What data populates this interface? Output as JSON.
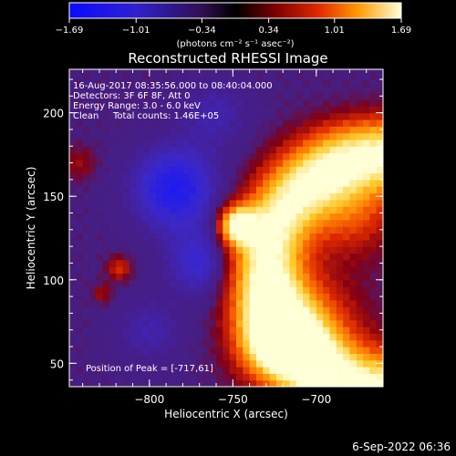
{
  "chart_data": {
    "type": "heatmap",
    "title": "Reconstructed RHESSI Image",
    "xlabel": "Heliocentric X (arcsec)",
    "ylabel": "Heliocentric Y (arcsec)",
    "xlim": [
      -848,
      -660
    ],
    "ylim": [
      36,
      226
    ],
    "x_ticks": [
      {
        "value": -800,
        "label": "−800"
      },
      {
        "value": -750,
        "label": "−750"
      },
      {
        "value": -700,
        "label": "−700"
      }
    ],
    "y_ticks": [
      {
        "value": 50,
        "label": "50"
      },
      {
        "value": 100,
        "label": "100"
      },
      {
        "value": 150,
        "label": "150"
      },
      {
        "value": 200,
        "label": "200"
      }
    ],
    "colorbar": {
      "range": [
        -1.69,
        1.69
      ],
      "ticks": [
        {
          "value": -1.69,
          "label": "−1.69"
        },
        {
          "value": -1.01,
          "label": "−1.01"
        },
        {
          "value": -0.34,
          "label": "−0.34"
        },
        {
          "value": 0.34,
          "label": "0.34"
        },
        {
          "value": 1.01,
          "label": "1.01"
        },
        {
          "value": 1.69,
          "label": "1.69"
        }
      ],
      "unit_label": "(photons cm⁻² s⁻¹ asec⁻²)"
    },
    "annotations": {
      "time_range": "16-Aug-2017 08:35:56.000 to 08:40:04.000",
      "detectors": "Detectors: 3F 6F 8F, Att 0",
      "energy_range": "Energy Range: 3.0 - 6.0 keV",
      "method": "Clean",
      "total_counts": "Total counts: 1.46E+05",
      "peak_position": "Position of Peak = [-717,61]"
    },
    "peak": {
      "x": -717,
      "y": 61
    },
    "grid": false,
    "colors": {
      "min": "#1010ff",
      "zero": "#000000",
      "low": "#8a0000",
      "mid": "#ff5a00",
      "max": "#ffffd8"
    }
  },
  "footer": {
    "date": "6-Sep-2022 06:36"
  }
}
